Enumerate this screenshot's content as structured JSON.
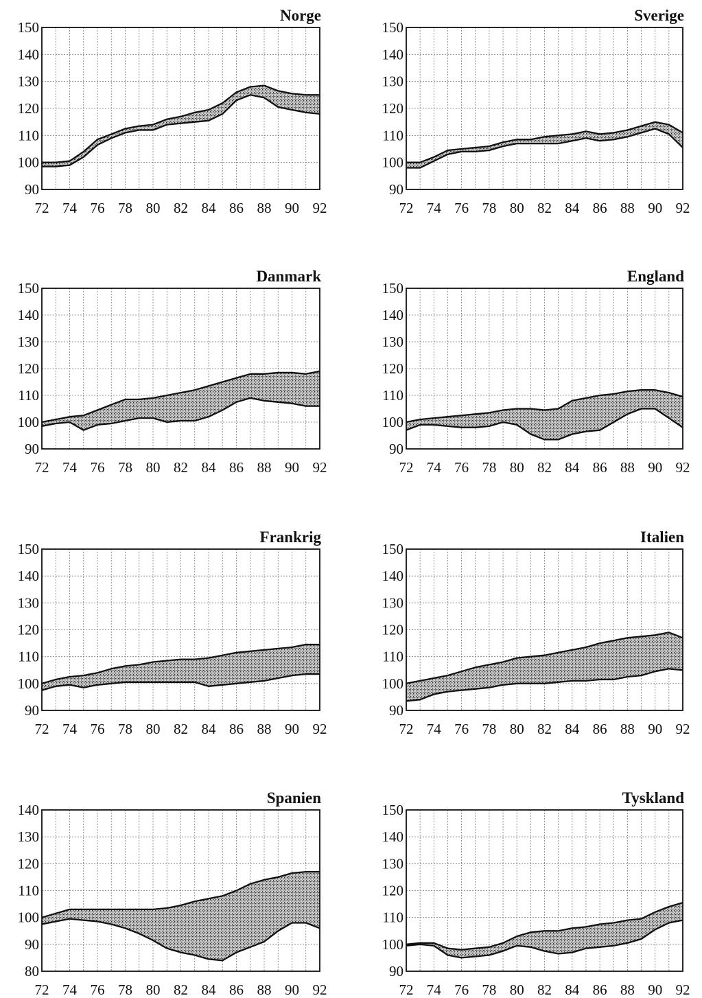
{
  "chart_data": [
    {
      "type": "area",
      "title": "Norge",
      "ylim": [
        90,
        150
      ],
      "yticks": [
        90,
        100,
        110,
        120,
        130,
        140,
        150
      ],
      "xticks": [
        72,
        74,
        76,
        78,
        80,
        82,
        84,
        86,
        88,
        90,
        92
      ],
      "xlim": [
        72,
        92
      ],
      "grid": true,
      "x": [
        72,
        73,
        74,
        75,
        76,
        77,
        78,
        79,
        80,
        81,
        82,
        83,
        84,
        85,
        86,
        87,
        88,
        89,
        90,
        91,
        92
      ],
      "upper": [
        100,
        100,
        100.5,
        104,
        108.5,
        110.5,
        112.5,
        113.5,
        114,
        116,
        117,
        118.5,
        119.5,
        122,
        126,
        128,
        128.5,
        126.5,
        125.5,
        125,
        125
      ],
      "lower": [
        98.5,
        98.5,
        99,
        102,
        106.5,
        109,
        111,
        112,
        112,
        114,
        114.5,
        115,
        115.5,
        118,
        123,
        125,
        124,
        120.5,
        119.5,
        118.5,
        118
      ]
    },
    {
      "type": "area",
      "title": "Sverige",
      "ylim": [
        90,
        150
      ],
      "yticks": [
        90,
        100,
        110,
        120,
        130,
        140,
        150
      ],
      "xticks": [
        72,
        74,
        76,
        78,
        80,
        82,
        84,
        86,
        88,
        90,
        92
      ],
      "xlim": [
        72,
        92
      ],
      "grid": true,
      "x": [
        72,
        73,
        74,
        75,
        76,
        77,
        78,
        79,
        80,
        81,
        82,
        83,
        84,
        85,
        86,
        87,
        88,
        89,
        90,
        91,
        92
      ],
      "upper": [
        100,
        100,
        102,
        104.5,
        105,
        105.5,
        106,
        107.5,
        108.5,
        108.5,
        109.5,
        110,
        110.5,
        111.5,
        110.5,
        111,
        112,
        113.5,
        115,
        114,
        111
      ],
      "lower": [
        98,
        98,
        100.5,
        103,
        104,
        104,
        104.5,
        106,
        107,
        107,
        107,
        107,
        108,
        109,
        108,
        108.5,
        109.5,
        111,
        112.5,
        110.5,
        105.5
      ]
    },
    {
      "type": "area",
      "title": "Danmark",
      "ylim": [
        90,
        150
      ],
      "yticks": [
        90,
        100,
        110,
        120,
        130,
        140,
        150
      ],
      "xticks": [
        72,
        74,
        76,
        78,
        80,
        82,
        84,
        86,
        88,
        90,
        92
      ],
      "xlim": [
        72,
        92
      ],
      "grid": true,
      "x": [
        72,
        73,
        74,
        75,
        76,
        77,
        78,
        79,
        80,
        81,
        82,
        83,
        84,
        85,
        86,
        87,
        88,
        89,
        90,
        91,
        92
      ],
      "upper": [
        100,
        101,
        102,
        102.5,
        104.5,
        106.5,
        108.5,
        108.5,
        109,
        110,
        111,
        112,
        113.5,
        115,
        116.5,
        118,
        118,
        118.5,
        118.5,
        118,
        119
      ],
      "lower": [
        98.5,
        99.5,
        100,
        97,
        99,
        99.5,
        100.5,
        101.5,
        101.5,
        100,
        100.5,
        100.5,
        102,
        104.5,
        107.5,
        109,
        108,
        107.5,
        107,
        106,
        106
      ]
    },
    {
      "type": "area",
      "title": "England",
      "ylim": [
        90,
        150
      ],
      "yticks": [
        90,
        100,
        110,
        120,
        130,
        140,
        150
      ],
      "xticks": [
        72,
        74,
        76,
        78,
        80,
        82,
        84,
        86,
        88,
        90,
        92
      ],
      "xlim": [
        72,
        92
      ],
      "grid": true,
      "x": [
        72,
        73,
        74,
        75,
        76,
        77,
        78,
        79,
        80,
        81,
        82,
        83,
        84,
        85,
        86,
        87,
        88,
        89,
        90,
        91,
        92
      ],
      "upper": [
        100,
        101,
        101.5,
        102,
        102.5,
        103,
        103.5,
        104.5,
        105,
        105,
        104.5,
        105,
        108,
        109,
        110,
        110.5,
        111.5,
        112,
        112,
        111,
        109.5
      ],
      "lower": [
        97,
        99,
        99,
        98.5,
        98,
        98,
        98.5,
        100,
        99,
        95.5,
        93.5,
        93.5,
        95.5,
        96.5,
        97,
        100,
        103,
        105,
        105,
        101.5,
        98
      ]
    },
    {
      "type": "area",
      "title": "Frankrig",
      "ylim": [
        90,
        150
      ],
      "yticks": [
        90,
        100,
        110,
        120,
        130,
        140,
        150
      ],
      "xticks": [
        72,
        74,
        76,
        78,
        80,
        82,
        84,
        86,
        88,
        90,
        92
      ],
      "xlim": [
        72,
        92
      ],
      "grid": true,
      "x": [
        72,
        73,
        74,
        75,
        76,
        77,
        78,
        79,
        80,
        81,
        82,
        83,
        84,
        85,
        86,
        87,
        88,
        89,
        90,
        91,
        92
      ],
      "upper": [
        100,
        101.5,
        102.5,
        103,
        104,
        105.5,
        106.5,
        107,
        108,
        108.5,
        109,
        109,
        109.5,
        110.5,
        111.5,
        112,
        112.5,
        113,
        113.5,
        114.5,
        114.5
      ],
      "lower": [
        97.5,
        99,
        99.5,
        98.5,
        99.5,
        100,
        100.5,
        100.5,
        100.5,
        100.5,
        100.5,
        100.5,
        99,
        99.5,
        100,
        100.5,
        101,
        102,
        103,
        103.5,
        103.5
      ]
    },
    {
      "type": "area",
      "title": "Italien",
      "ylim": [
        90,
        150
      ],
      "yticks": [
        90,
        100,
        110,
        120,
        130,
        140,
        150
      ],
      "xticks": [
        72,
        74,
        76,
        78,
        80,
        82,
        84,
        86,
        88,
        90,
        92
      ],
      "xlim": [
        72,
        92
      ],
      "grid": true,
      "x": [
        72,
        73,
        74,
        75,
        76,
        77,
        78,
        79,
        80,
        81,
        82,
        83,
        84,
        85,
        86,
        87,
        88,
        89,
        90,
        91,
        92
      ],
      "upper": [
        100,
        101,
        102,
        103,
        104.5,
        106,
        107,
        108,
        109.5,
        110,
        110.5,
        111.5,
        112.5,
        113.5,
        115,
        116,
        117,
        117.5,
        118,
        119,
        117
      ],
      "lower": [
        93.5,
        94,
        96,
        97,
        97.5,
        98,
        98.5,
        99.5,
        100,
        100,
        100,
        100.5,
        101,
        101,
        101.5,
        101.5,
        102.5,
        103,
        104.5,
        105.5,
        105
      ]
    },
    {
      "type": "area",
      "title": "Spanien",
      "ylim": [
        80,
        140
      ],
      "yticks": [
        80,
        90,
        100,
        110,
        120,
        130,
        140
      ],
      "xticks": [
        72,
        74,
        76,
        78,
        80,
        82,
        84,
        86,
        88,
        90,
        92
      ],
      "xlim": [
        72,
        92
      ],
      "grid": true,
      "x": [
        72,
        73,
        74,
        75,
        76,
        77,
        78,
        79,
        80,
        81,
        82,
        83,
        84,
        85,
        86,
        87,
        88,
        89,
        90,
        91,
        92
      ],
      "upper": [
        100,
        101.5,
        103,
        103,
        103,
        103,
        103,
        103,
        103,
        103.5,
        104.5,
        106,
        107,
        108,
        110,
        112.5,
        114,
        115,
        116.5,
        117,
        117
      ],
      "lower": [
        97.5,
        98.5,
        99.5,
        99,
        98.5,
        97.5,
        96,
        94,
        91.5,
        88.5,
        87,
        86,
        84.5,
        84,
        87,
        89,
        91,
        95,
        98,
        98,
        96
      ]
    },
    {
      "type": "area",
      "title": "Tyskland",
      "ylim": [
        90,
        150
      ],
      "yticks": [
        90,
        100,
        110,
        120,
        130,
        140,
        150
      ],
      "xticks": [
        72,
        74,
        76,
        78,
        80,
        82,
        84,
        86,
        88,
        90,
        92
      ],
      "xlim": [
        72,
        92
      ],
      "grid": true,
      "x": [
        72,
        73,
        74,
        75,
        76,
        77,
        78,
        79,
        80,
        81,
        82,
        83,
        84,
        85,
        86,
        87,
        88,
        89,
        90,
        91,
        92
      ],
      "upper": [
        100,
        100.5,
        100.5,
        98.5,
        98,
        98.5,
        99,
        100.5,
        103,
        104.5,
        105,
        105,
        106,
        106.5,
        107.5,
        108,
        109,
        109.5,
        112,
        114,
        115.5
      ],
      "lower": [
        99.5,
        100,
        99.5,
        96,
        95,
        95.5,
        96,
        97.5,
        99.5,
        99,
        97.5,
        96.5,
        97,
        98.5,
        99,
        99.5,
        100.5,
        102,
        105.5,
        108,
        109
      ]
    }
  ]
}
